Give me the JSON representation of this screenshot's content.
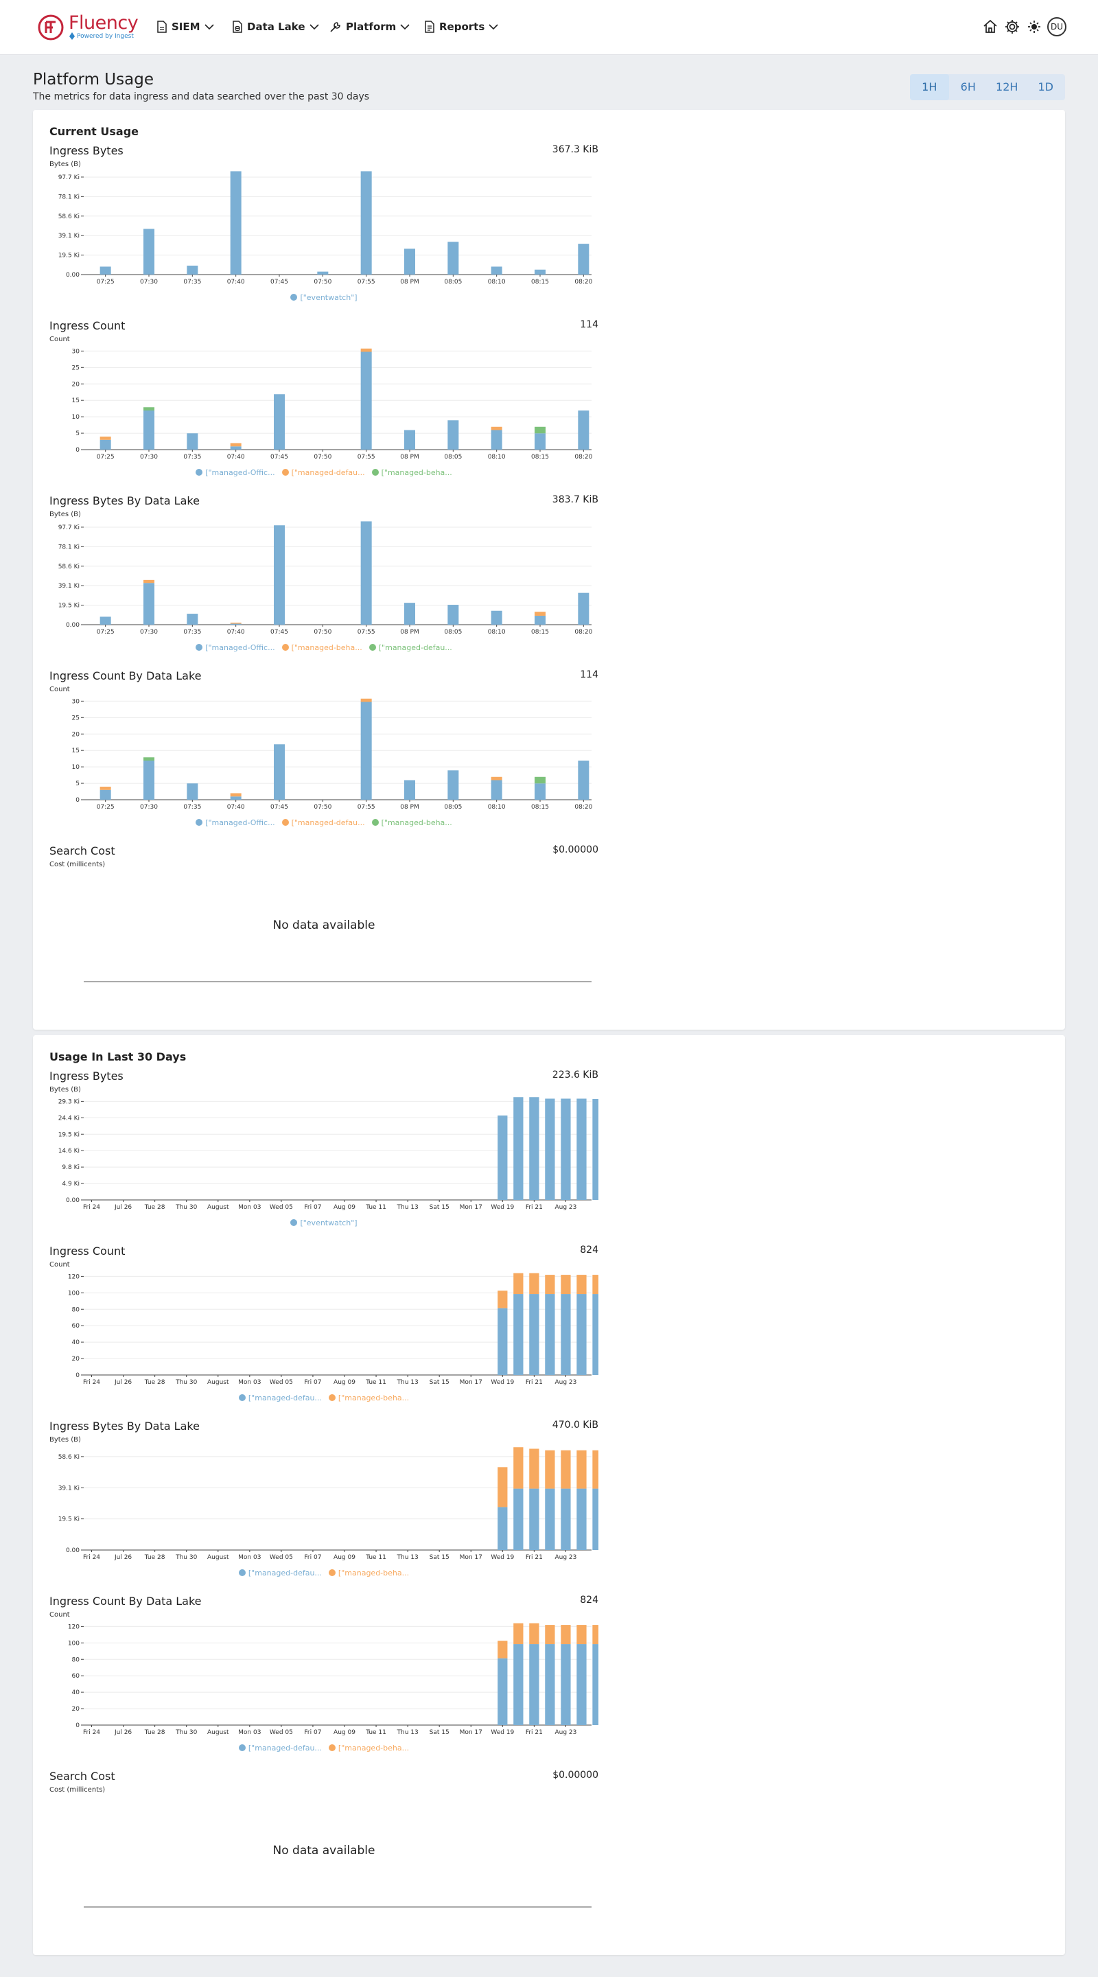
{
  "header": {
    "logo_text": "Fluency",
    "logo_subtext": "Powered by Ingest",
    "nav": [
      {
        "label": "SIEM",
        "icon": "document-icon"
      },
      {
        "label": "Data Lake",
        "icon": "database-icon"
      },
      {
        "label": "Platform",
        "icon": "wrench-icon"
      },
      {
        "label": "Reports",
        "icon": "report-icon"
      }
    ],
    "avatar": "DU"
  },
  "page": {
    "title": "Platform Usage",
    "subtitle": "The metrics for data ingress and data searched over the past 30 days"
  },
  "time_range": {
    "options": [
      "1H",
      "6H",
      "12H",
      "1D"
    ],
    "selected": "1H"
  },
  "colors": {
    "blue": "#7bafd4",
    "orange": "#f7a95f",
    "green": "#7cc17a"
  },
  "sections": [
    {
      "title": "Current Usage",
      "charts": [
        {
          "title": "Ingress Bytes",
          "total": "367.3 KiB",
          "unit": "Bytes (B)",
          "type": "bar",
          "categories": [
            "07:25",
            "07:30",
            "07:35",
            "07:40",
            "07:45",
            "07:50",
            "07:55",
            "08 PM",
            "08:05",
            "08:10",
            "08:15",
            "08:20"
          ],
          "y_ticks": [
            "0.00",
            "19.5 Ki",
            "39.1 Ki",
            "58.6 Ki",
            "78.1 Ki",
            "97.7 Ki"
          ],
          "ymax": 105,
          "series": [
            {
              "name": "[\"eventwatch\"]",
              "color": "blue",
              "values": [
                8,
                46,
                9,
                104,
                0,
                3,
                104,
                26,
                33,
                8,
                5,
                31
              ]
            }
          ],
          "legend": [
            "[\"eventwatch\"]"
          ]
        },
        {
          "title": "Ingress Count",
          "total": "114",
          "unit": "Count",
          "type": "bar",
          "categories": [
            "07:25",
            "07:30",
            "07:35",
            "07:40",
            "07:45",
            "07:50",
            "07:55",
            "08 PM",
            "08:05",
            "08:10",
            "08:15",
            "08:20"
          ],
          "y_ticks": [
            "0",
            "5",
            "10",
            "15",
            "20",
            "25",
            "30"
          ],
          "ymax": 32,
          "series": [
            {
              "name": "[\"managed-Offic...",
              "color": "blue",
              "values": [
                3,
                12,
                5,
                1,
                17,
                0,
                30,
                6,
                9,
                6,
                5,
                12
              ]
            },
            {
              "name": "[\"managed-defau...",
              "color": "orange",
              "values": [
                1,
                0,
                0,
                1,
                0,
                0,
                1,
                0,
                0,
                1,
                0,
                0
              ]
            },
            {
              "name": "[\"managed-beha...",
              "color": "green",
              "values": [
                0,
                1,
                0,
                0,
                0,
                0,
                0,
                0,
                0,
                0,
                2,
                0
              ]
            }
          ],
          "legend": [
            "[\"managed-Offic...",
            "[\"managed-defau...",
            "[\"managed-beha..."
          ]
        },
        {
          "title": "Ingress Bytes By Data Lake",
          "total": "383.7 KiB",
          "unit": "Bytes (B)",
          "type": "bar",
          "categories": [
            "07:25",
            "07:30",
            "07:35",
            "07:40",
            "07:45",
            "07:50",
            "07:55",
            "08 PM",
            "08:05",
            "08:10",
            "08:15",
            "08:20"
          ],
          "y_ticks": [
            "0.00",
            "19.5 Ki",
            "39.1 Ki",
            "58.6 Ki",
            "78.1 Ki",
            "97.7 Ki"
          ],
          "ymax": 105,
          "series": [
            {
              "name": "[\"managed-Offic...",
              "color": "blue",
              "values": [
                8,
                42,
                11,
                1,
                100,
                0,
                104,
                22,
                20,
                14,
                9,
                32
              ]
            },
            {
              "name": "[\"managed-beha...",
              "color": "orange",
              "values": [
                0,
                3,
                0,
                1,
                0,
                0,
                0,
                0,
                0,
                0,
                4,
                0
              ]
            },
            {
              "name": "[\"managed-defau...",
              "color": "green",
              "values": [
                0,
                0,
                0,
                0,
                0,
                0,
                0,
                0,
                0,
                0,
                0,
                0
              ]
            }
          ],
          "legend": [
            "[\"managed-Offic...",
            "[\"managed-beha...",
            "[\"managed-defau..."
          ]
        },
        {
          "title": "Ingress Count By Data Lake",
          "total": "114",
          "unit": "Count",
          "type": "bar",
          "categories": [
            "07:25",
            "07:30",
            "07:35",
            "07:40",
            "07:45",
            "07:50",
            "07:55",
            "08 PM",
            "08:05",
            "08:10",
            "08:15",
            "08:20"
          ],
          "y_ticks": [
            "0",
            "5",
            "10",
            "15",
            "20",
            "25",
            "30"
          ],
          "ymax": 32,
          "series": [
            {
              "name": "[\"managed-Offic...",
              "color": "blue",
              "values": [
                3,
                12,
                5,
                1,
                17,
                0,
                30,
                6,
                9,
                6,
                5,
                12
              ]
            },
            {
              "name": "[\"managed-defau...",
              "color": "orange",
              "values": [
                1,
                0,
                0,
                1,
                0,
                0,
                1,
                0,
                0,
                1,
                0,
                0
              ]
            },
            {
              "name": "[\"managed-beha...",
              "color": "green",
              "values": [
                0,
                1,
                0,
                0,
                0,
                0,
                0,
                0,
                0,
                0,
                2,
                0
              ]
            }
          ],
          "legend": [
            "[\"managed-Offic...",
            "[\"managed-defau...",
            "[\"managed-beha..."
          ]
        },
        {
          "title": "Search Cost",
          "total": "$0.00000",
          "unit": "Cost (millicents)",
          "type": "empty",
          "empty_text": "No data available"
        }
      ]
    },
    {
      "title": "Usage In Last 30 Days",
      "charts": [
        {
          "title": "Ingress Bytes",
          "total": "223.6 KiB",
          "unit": "Bytes (B)",
          "type": "bar",
          "categories": [
            "Fri 24",
            "Jul 26",
            "Tue 28",
            "Thu 30",
            "August",
            "Mon 03",
            "Wed 05",
            "Fri 07",
            "Aug 09",
            "Tue 11",
            "Thu 13",
            "Sat 15",
            "Mon 17",
            "Wed 19",
            "Fri 21",
            "Aug 23"
          ],
          "y_ticks": [
            "0.00",
            "4.9 Ki",
            "9.8 Ki",
            "14.6 Ki",
            "19.5 Ki",
            "24.4 Ki",
            "29.3 Ki"
          ],
          "ymax": 34,
          "series": [
            {
              "name": "[\"eventwatch\"]",
              "color": "blue",
              "values": [
                0,
                0,
                0,
                0,
                0,
                0,
                0,
                0,
                0,
                0,
                0,
                0,
                0,
                0,
                0,
                0,
                0,
                0,
                0,
                0,
                0,
                0,
                0,
                0,
                0,
                0,
                27.5,
                33.5,
                33.5,
                33,
                33,
                33,
                32.9
              ]
            }
          ],
          "legend": [
            "[\"eventwatch\"]"
          ]
        },
        {
          "title": "Ingress Count",
          "total": "824",
          "unit": "Count",
          "type": "bar",
          "categories": [
            "Fri 24",
            "Jul 26",
            "Tue 28",
            "Thu 30",
            "August",
            "Mon 03",
            "Wed 05",
            "Fri 07",
            "Aug 09",
            "Tue 11",
            "Thu 13",
            "Sat 15",
            "Mon 17",
            "Wed 19",
            "Fri 21",
            "Aug 23"
          ],
          "y_ticks": [
            "0",
            "20",
            "40",
            "60",
            "80",
            "100",
            "120"
          ],
          "ymax": 125,
          "series": [
            {
              "name": "[\"managed-defau...",
              "color": "blue",
              "values": [
                0,
                0,
                0,
                0,
                0,
                0,
                0,
                0,
                0,
                0,
                0,
                0,
                0,
                0,
                0,
                0,
                0,
                0,
                0,
                0,
                0,
                0,
                0,
                0,
                0,
                0,
                80,
                97,
                97,
                97,
                97,
                97,
                97
              ]
            },
            {
              "name": "[\"managed-beha...",
              "color": "orange",
              "values": [
                0,
                0,
                0,
                0,
                0,
                0,
                0,
                0,
                0,
                0,
                0,
                0,
                0,
                0,
                0,
                0,
                0,
                0,
                0,
                0,
                0,
                0,
                0,
                0,
                0,
                0,
                21,
                25,
                25,
                23,
                23,
                23,
                23
              ]
            }
          ],
          "legend": [
            "[\"managed-defau...",
            "[\"managed-beha..."
          ]
        },
        {
          "title": "Ingress Bytes By Data Lake",
          "total": "470.0 KiB",
          "unit": "Bytes (B)",
          "type": "bar",
          "categories": [
            "Fri 24",
            "Jul 26",
            "Tue 28",
            "Thu 30",
            "August",
            "Mon 03",
            "Wed 05",
            "Fri 07",
            "Aug 09",
            "Tue 11",
            "Thu 13",
            "Sat 15",
            "Mon 17",
            "Wed 19",
            "Fri 21",
            "Aug 23"
          ],
          "y_ticks": [
            "0.00",
            "19.5 Ki",
            "39.1 Ki",
            "58.6 Ki"
          ],
          "ymax": 68,
          "series": [
            {
              "name": "[\"managed-defau...",
              "color": "blue",
              "values": [
                0,
                0,
                0,
                0,
                0,
                0,
                0,
                0,
                0,
                0,
                0,
                0,
                0,
                0,
                0,
                0,
                0,
                0,
                0,
                0,
                0,
                0,
                0,
                0,
                0,
                0,
                28,
                40,
                40,
                40,
                40,
                40,
                40
              ]
            },
            {
              "name": "[\"managed-beha...",
              "color": "orange",
              "values": [
                0,
                0,
                0,
                0,
                0,
                0,
                0,
                0,
                0,
                0,
                0,
                0,
                0,
                0,
                0,
                0,
                0,
                0,
                0,
                0,
                0,
                0,
                0,
                0,
                0,
                0,
                26,
                27,
                26,
                25,
                25,
                25,
                25
              ]
            }
          ],
          "legend": [
            "[\"managed-defau...",
            "[\"managed-beha..."
          ]
        },
        {
          "title": "Ingress Count By Data Lake",
          "total": "824",
          "unit": "Count",
          "type": "bar",
          "categories": [
            "Fri 24",
            "Jul 26",
            "Tue 28",
            "Thu 30",
            "August",
            "Mon 03",
            "Wed 05",
            "Fri 07",
            "Aug 09",
            "Tue 11",
            "Thu 13",
            "Sat 15",
            "Mon 17",
            "Wed 19",
            "Fri 21",
            "Aug 23"
          ],
          "y_ticks": [
            "0",
            "20",
            "40",
            "60",
            "80",
            "100",
            "120"
          ],
          "ymax": 125,
          "series": [
            {
              "name": "[\"managed-defau...",
              "color": "blue",
              "values": [
                0,
                0,
                0,
                0,
                0,
                0,
                0,
                0,
                0,
                0,
                0,
                0,
                0,
                0,
                0,
                0,
                0,
                0,
                0,
                0,
                0,
                0,
                0,
                0,
                0,
                0,
                80,
                97,
                97,
                97,
                97,
                97,
                97
              ]
            },
            {
              "name": "[\"managed-beha...",
              "color": "orange",
              "values": [
                0,
                0,
                0,
                0,
                0,
                0,
                0,
                0,
                0,
                0,
                0,
                0,
                0,
                0,
                0,
                0,
                0,
                0,
                0,
                0,
                0,
                0,
                0,
                0,
                0,
                0,
                21,
                25,
                25,
                23,
                23,
                23,
                23
              ]
            }
          ],
          "legend": [
            "[\"managed-defau...",
            "[\"managed-beha..."
          ]
        },
        {
          "title": "Search Cost",
          "total": "$0.00000",
          "unit": "Cost (millicents)",
          "type": "empty",
          "empty_text": "No data available"
        }
      ]
    }
  ]
}
